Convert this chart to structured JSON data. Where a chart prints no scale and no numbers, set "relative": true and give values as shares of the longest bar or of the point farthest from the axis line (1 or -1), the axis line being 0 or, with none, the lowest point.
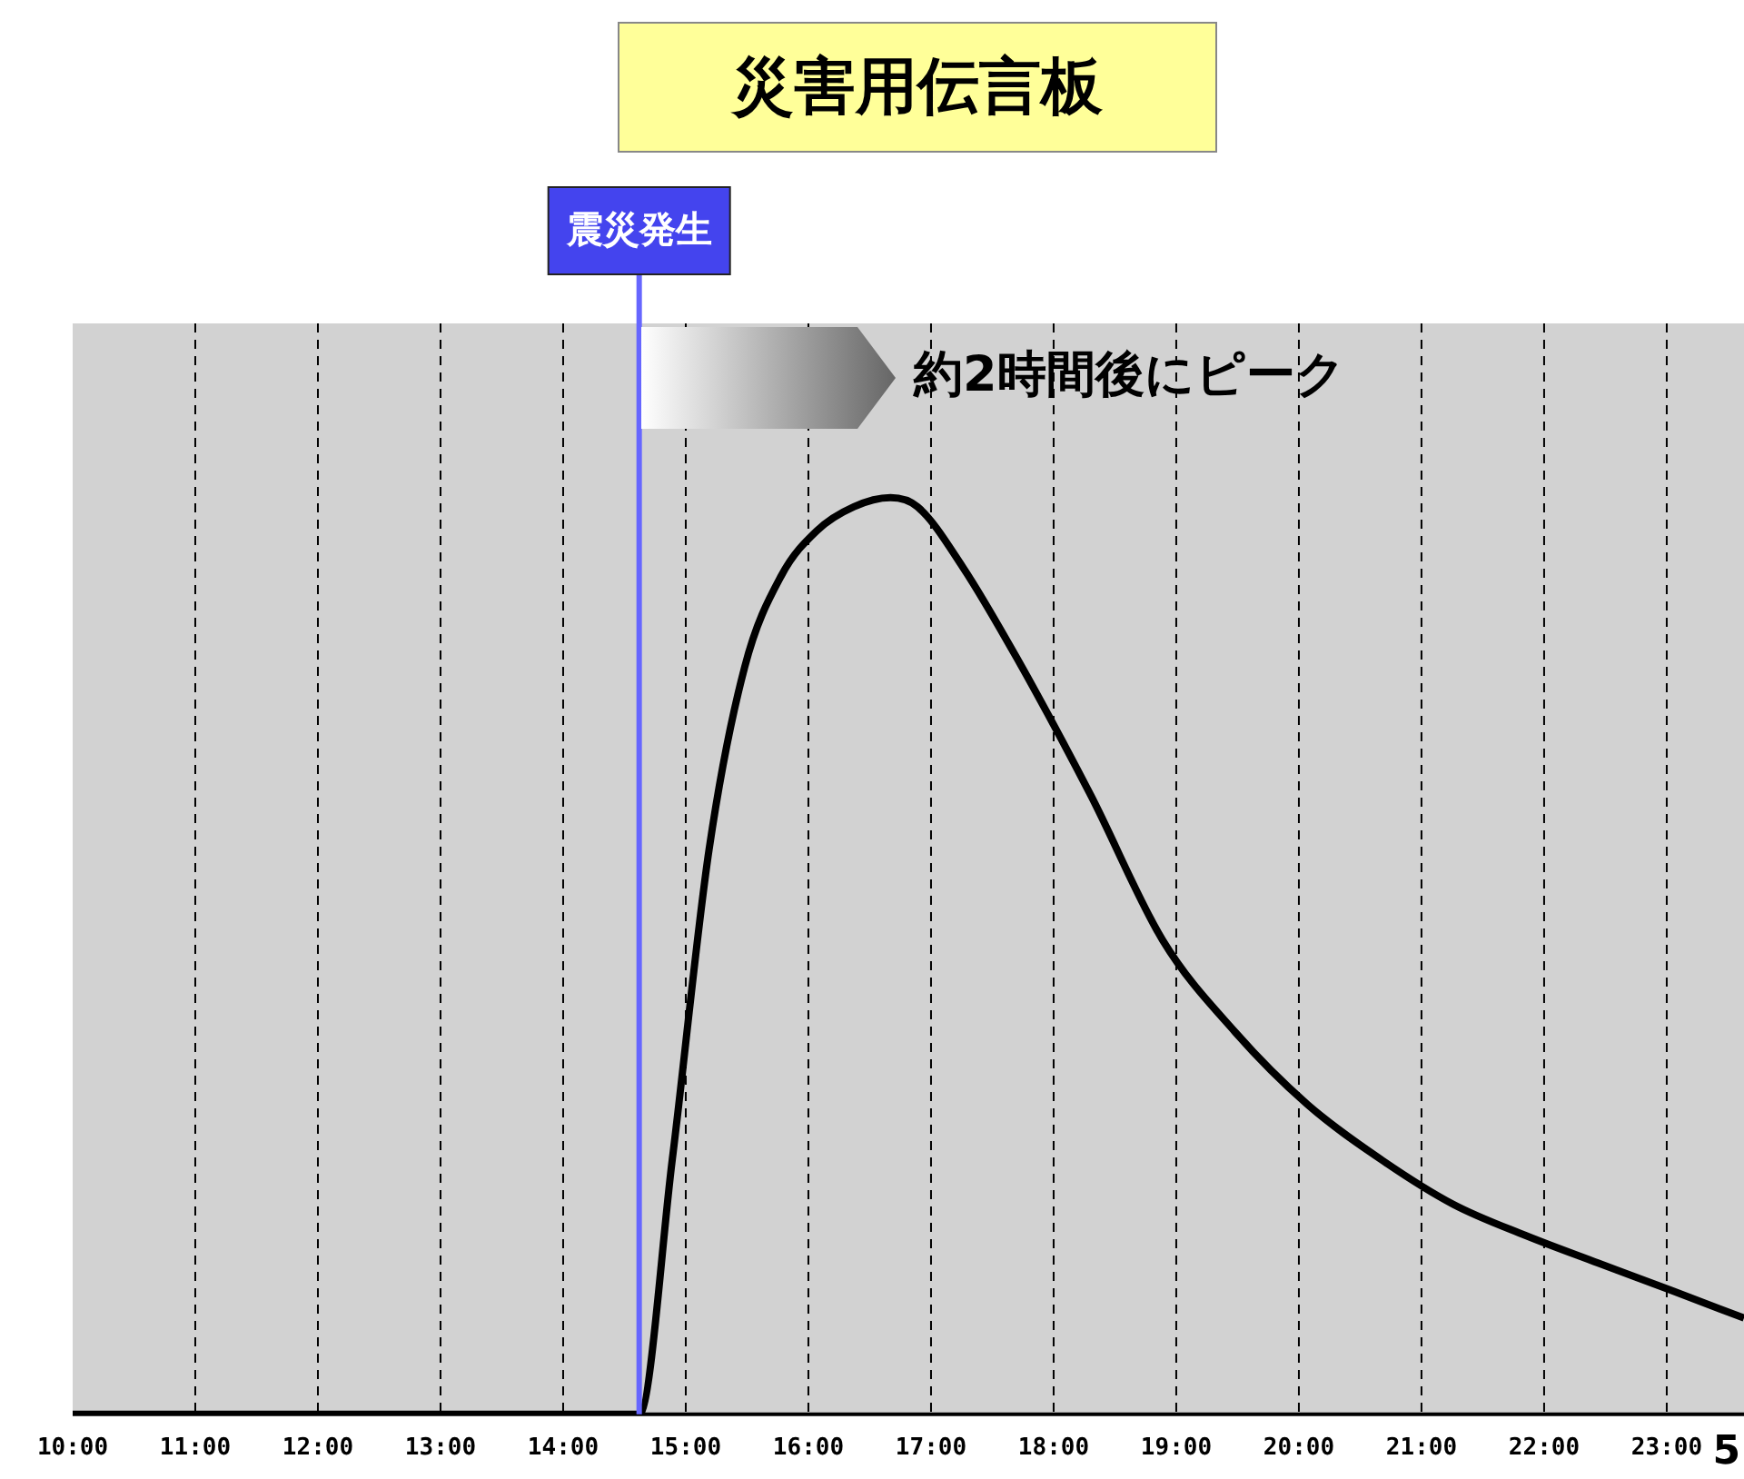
{
  "chart_data": {
    "type": "line",
    "title": "災害用伝言板",
    "relative": true,
    "series": [
      {
        "color": "#000000",
        "x": [
          10,
          14.62,
          14.89,
          15.19,
          15.48,
          15.78,
          16.07,
          16.37,
          16.67,
          16.89,
          17.26,
          17.7,
          18.3,
          18.89,
          19.48,
          20.07,
          20.67,
          21.26,
          21.85,
          22.44,
          23.04,
          23.63
        ],
        "values": [
          0,
          0,
          0.278,
          0.616,
          0.815,
          0.915,
          0.964,
          0.99,
          1,
          0.99,
          0.924,
          0.825,
          0.676,
          0.517,
          0.417,
          0.338,
          0.278,
          0.229,
          0.195,
          0.165,
          0.135,
          0.105
        ]
      }
    ],
    "xlim": [
      10,
      23.63
    ],
    "xticks": [
      {
        "value": 10,
        "label": "10:00"
      },
      {
        "value": 11,
        "label": "11:00"
      },
      {
        "value": 12,
        "label": "12:00"
      },
      {
        "value": 13,
        "label": "13:00"
      },
      {
        "value": 14,
        "label": "14:00"
      },
      {
        "value": 15,
        "label": "15:00"
      },
      {
        "value": 16,
        "label": "16:00"
      },
      {
        "value": 17,
        "label": "17:00"
      },
      {
        "value": 18,
        "label": "18:00"
      },
      {
        "value": 19,
        "label": "19:00"
      },
      {
        "value": 20,
        "label": "20:00"
      },
      {
        "value": 21,
        "label": "21:00"
      },
      {
        "value": 22,
        "label": "22:00"
      },
      {
        "value": 23,
        "label": "23:00"
      }
    ],
    "ref_lines": [
      {
        "axis": "x",
        "value": 14.62,
        "label": "震災発生",
        "color": "#6666ff"
      }
    ],
    "annotations": [
      "約2時間後にピーク",
      "5"
    ],
    "grid": "x",
    "legend": false,
    "marker": "none",
    "line_style": "solid"
  }
}
